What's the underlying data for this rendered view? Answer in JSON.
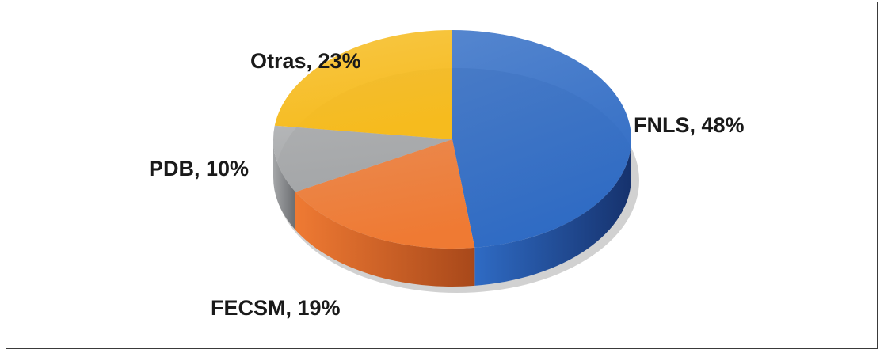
{
  "chart_data": {
    "type": "pie",
    "style": "3d",
    "title": "",
    "slices": [
      {
        "name": "FNLS",
        "value": 48,
        "label": "FNLS, 48%",
        "color": "#2f6bc4",
        "side_color": "#16326d"
      },
      {
        "name": "FECSM",
        "value": 19,
        "label": "FECSM, 19%",
        "color": "#ef7a33",
        "side_color": "#a8481a"
      },
      {
        "name": "PDB",
        "value": 10,
        "label": "PDB, 10%",
        "color": "#a4a6a8",
        "side_color": "#6b6d70"
      },
      {
        "name": "Otras",
        "value": 23,
        "label": "Otras, 23%",
        "color": "#f6bb1e",
        "side_color": "#b98708"
      }
    ],
    "legend": "none",
    "grid": false
  }
}
